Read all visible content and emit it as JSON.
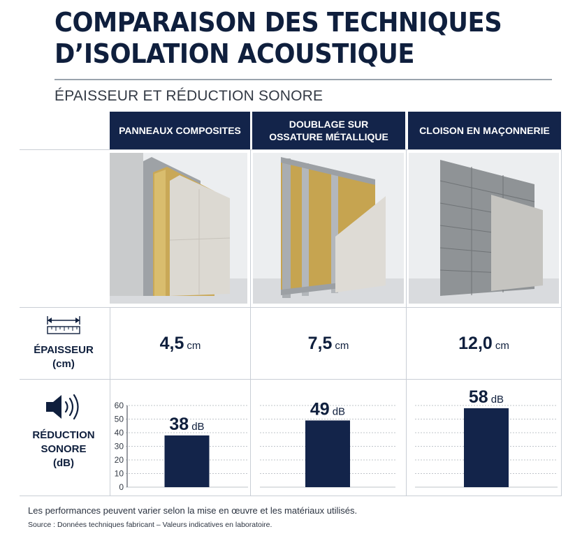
{
  "header": {
    "title_line1": "COMPARAISON DES TECHNIQUES",
    "title_line2": "D’ISOLATION ACOUSTIQUE",
    "subtitle": "ÉPAISSEUR ET RÉDUCTION SONORE"
  },
  "columns": [
    {
      "label": "PANNEAUX COMPOSITES"
    },
    {
      "label": "DOUBLAGE SUR\nOSSATURE MÉTALLIQUE"
    },
    {
      "label": "CLOISON EN MAÇONNERIE"
    }
  ],
  "rows": {
    "thickness": {
      "label": "ÉPAISSEUR\n(cm)",
      "icon": "ruler-icon"
    },
    "reduction": {
      "label": "RÉDUCTION\nSONORE\n(dB)",
      "icon": "speaker-icon"
    }
  },
  "thickness_values": [
    {
      "value": "4,5",
      "unit": "cm"
    },
    {
      "value": "7,5",
      "unit": "cm"
    },
    {
      "value": "12,0",
      "unit": "cm"
    }
  ],
  "colors": {
    "navy": "#13244a",
    "rule": "#c9ced5"
  },
  "chart_data": {
    "type": "bar",
    "categories": [
      "PANNEAUX COMPOSITES",
      "DOUBLAGE SUR OSSATURE MÉTALLIQUE",
      "CLOISON EN MAÇONNERIE"
    ],
    "values": [
      38,
      49,
      58
    ],
    "data_labels": [
      {
        "value": "38",
        "unit": "dB"
      },
      {
        "value": "49",
        "unit": "dB"
      },
      {
        "value": "58",
        "unit": "dB"
      }
    ],
    "ylim": [
      0,
      60
    ],
    "yticks": [
      "0",
      "10",
      "20",
      "30",
      "40",
      "50",
      "60"
    ],
    "grid": true,
    "xlabel": "",
    "ylabel": "RÉDUCTION SONORE (dB)"
  },
  "footer": {
    "note": "Les performances peuvent varier selon la mise en œuvre et les matériaux utilisés.",
    "source": "Source : Données techniques fabricant – Valeurs indicatives en laboratoire."
  }
}
